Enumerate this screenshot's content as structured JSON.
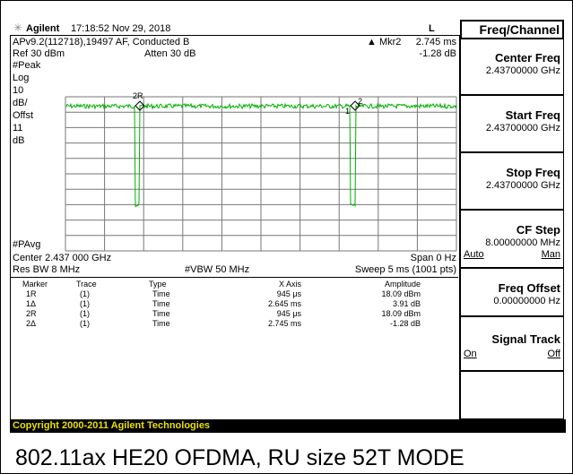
{
  "header": {
    "brand": "Agilent",
    "timestamp": "17:18:52  Nov 29, 2018",
    "mode_flag": "L"
  },
  "display": {
    "line1_left": "APv9.2(112718),19497 AF, Conducted B",
    "marker_label": "▲ Mkr2",
    "marker_x": "2.745 ms",
    "ref": "Ref 30 dBm",
    "atten": "Atten 30 dB",
    "marker_amp": "-1.28 dB",
    "detector": "#Peak",
    "scale_labels": [
      "Log",
      "10",
      "dB/",
      "Offst",
      "11",
      "dB"
    ],
    "avg": "#PAvg",
    "marker_tags": [
      "2R",
      "2",
      "1"
    ],
    "center": "Center 2.437 000 GHz",
    "span": "Span 0 Hz",
    "rbw": "Res BW 8 MHz",
    "vbw": "#VBW 50 MHz",
    "sweep": "Sweep 5 ms (1001 pts)"
  },
  "table": {
    "columns": [
      "Marker",
      "Trace",
      "Type",
      "X Axis",
      "Amplitude"
    ],
    "rows": [
      [
        "1R",
        "(1)",
        "Time",
        "945 μs",
        "18.09 dBm"
      ],
      [
        "1Δ",
        "(1)",
        "Time",
        "2.645 ms",
        "3.91 dB"
      ],
      [
        "2R",
        "(1)",
        "Time",
        "945 μs",
        "18.09 dBm"
      ],
      [
        "2Δ",
        "(1)",
        "Time",
        "2.745 ms",
        "-1.28 dB"
      ]
    ]
  },
  "menu": {
    "title": "Freq/Channel",
    "softkeys": [
      {
        "label": "Center Freq",
        "value": "2.43700000 GHz"
      },
      {
        "label": "Start Freq",
        "value": "2.43700000 GHz"
      },
      {
        "label": "Stop Freq",
        "value": "2.43700000 GHz"
      },
      {
        "label": "CF Step",
        "value": "8.00000000 MHz",
        "options": [
          "Auto",
          "Man"
        ]
      },
      {
        "label": "Freq Offset",
        "value": "0.00000000 Hz"
      },
      {
        "label": "Signal Track",
        "options": [
          "On",
          "Off"
        ]
      }
    ]
  },
  "copyright": "Copyright 2000-2011 Agilent Technologies",
  "caption": "802.11ax HE20 OFDMA, RU size 52T MODE"
}
